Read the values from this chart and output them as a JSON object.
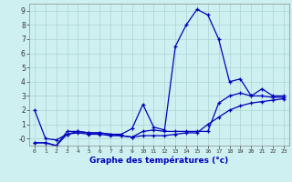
{
  "xlabel": "Graphe des températures (°c)",
  "background_color": "#cff0f0",
  "grid_color": "#b0d8d8",
  "line_color": "#0000bb",
  "x_ticks": [
    0,
    1,
    2,
    3,
    4,
    5,
    6,
    7,
    8,
    9,
    10,
    11,
    12,
    13,
    14,
    15,
    16,
    17,
    18,
    19,
    20,
    21,
    22,
    23
  ],
  "ylim": [
    -0.5,
    9.5
  ],
  "yticks": [
    0,
    1,
    2,
    3,
    4,
    5,
    6,
    7,
    8,
    9
  ],
  "ytick_labels": [
    "-0",
    "1",
    "2",
    "3",
    "4",
    "5",
    "6",
    "7",
    "8",
    "9"
  ],
  "xlim": [
    -0.5,
    23.5
  ],
  "series": [
    [
      2.0,
      0.0,
      -0.1,
      0.3,
      0.5,
      0.4,
      0.4,
      0.3,
      0.3,
      0.7,
      2.4,
      0.8,
      0.6,
      6.5,
      8.0,
      9.1,
      8.7,
      7.0,
      4.0,
      4.2,
      3.0,
      3.5,
      3.0,
      3.0
    ],
    [
      -0.3,
      -0.3,
      -0.5,
      0.5,
      0.5,
      0.4,
      0.4,
      0.3,
      0.2,
      0.1,
      0.5,
      0.6,
      0.5,
      0.5,
      0.5,
      0.5,
      0.5,
      2.5,
      3.0,
      3.2,
      3.0,
      3.0,
      2.9,
      2.9
    ],
    [
      -0.3,
      -0.3,
      -0.5,
      0.3,
      0.4,
      0.3,
      0.3,
      0.2,
      0.2,
      0.1,
      0.2,
      0.2,
      0.2,
      0.3,
      0.4,
      0.4,
      1.0,
      1.5,
      2.0,
      2.3,
      2.5,
      2.6,
      2.7,
      2.8
    ]
  ]
}
